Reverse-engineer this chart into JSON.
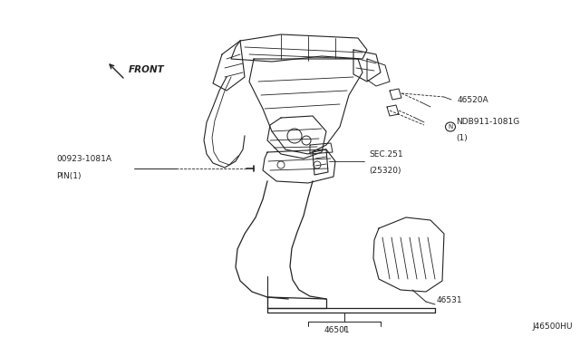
{
  "bg_color": "#ffffff",
  "line_color": "#222222",
  "text_color": "#222222",
  "fig_width": 6.4,
  "fig_height": 3.72,
  "dpi": 100,
  "watermark": "J46500HU",
  "labels": {
    "front": "FRONT",
    "part_46520A": "46520A",
    "part_NDB911_line1": "NDB911-1081G",
    "part_NDB911_line2": "(1)",
    "part_SEC251_line1": "SEC.251",
    "part_SEC251_line2": "(25320)",
    "part_00923_line1": "00923-1081A",
    "part_00923_line2": "PIN(1)",
    "part_46531": "46531",
    "part_46501": "46501"
  }
}
